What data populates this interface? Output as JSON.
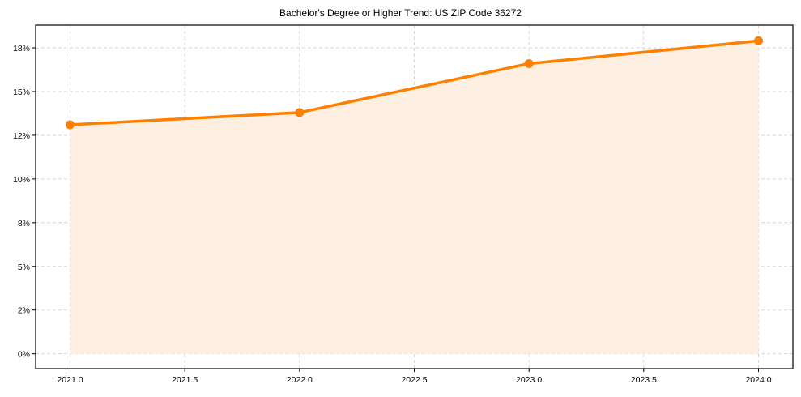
{
  "chart_data": {
    "type": "line",
    "title": "Bachelor's Degree or Higher Trend: US ZIP Code 36272",
    "xlabel": "",
    "ylabel": "",
    "x": [
      2021,
      2022,
      2023,
      2024
    ],
    "series": [
      {
        "name": "Bachelor's Degree or Higher",
        "values": [
          13.1,
          13.8,
          16.6,
          17.9
        ],
        "color": "#ff8000",
        "fill": "#fdf0e2"
      }
    ],
    "x_ticks": [
      "2021.0",
      "2021.5",
      "2022.0",
      "2022.5",
      "2023.0",
      "2023.5",
      "2024.0"
    ],
    "x_tick_values": [
      2021.0,
      2021.5,
      2022.0,
      2022.5,
      2023.0,
      2023.5,
      2024.0
    ],
    "y_ticks": [
      "0%",
      "2%",
      "5%",
      "8%",
      "10%",
      "12%",
      "15%",
      "18%"
    ],
    "y_tick_values": [
      0,
      2.5,
      5,
      7.5,
      10,
      12.5,
      15,
      17.5
    ],
    "xlim": [
      2020.85,
      2024.15
    ],
    "ylim": [
      -0.85,
      18.8
    ],
    "grid": true,
    "legend": "none"
  }
}
